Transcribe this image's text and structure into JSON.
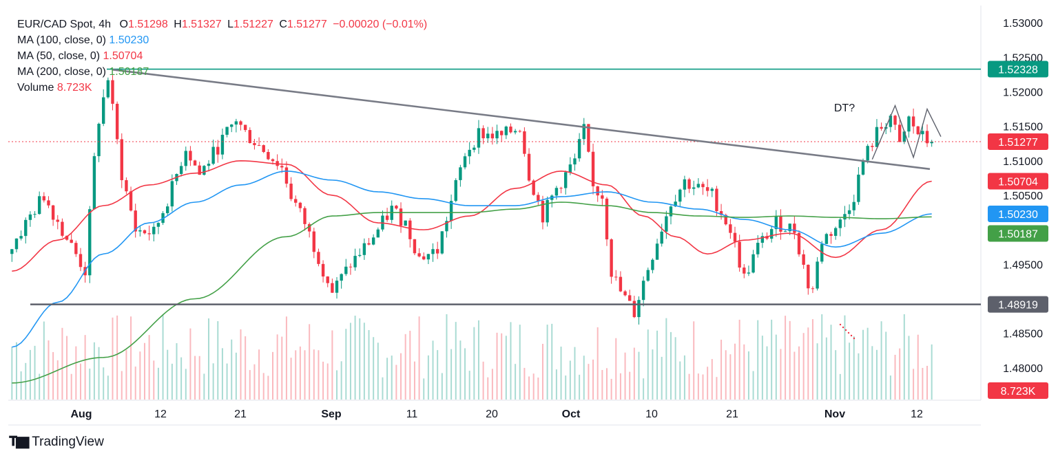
{
  "header": {
    "symbol": "EUR/CAD Spot, 4h",
    "ohlc": {
      "o_label": "O",
      "o_value": "1.51298",
      "h_label": "H",
      "h_value": "1.51327",
      "l_label": "L",
      "l_value": "1.51227",
      "c_label": "C",
      "c_value": "1.51277",
      "change": "−0.00020 (−0.01%)"
    },
    "indicators": [
      {
        "name": "MA (100, close, 0)",
        "value": "1.50230",
        "color": "#2196f3"
      },
      {
        "name": "MA (50, close, 0)",
        "value": "1.50704",
        "color": "#f23645"
      },
      {
        "name": "MA (200, close, 0)",
        "value": "1.50187",
        "color": "#43a047"
      },
      {
        "name": "Volume",
        "value": "8.723K",
        "color": "#f23645"
      }
    ]
  },
  "chart_data": {
    "type": "candlestick",
    "title": "EUR/CAD Spot, 4h",
    "ylim": [
      1.4753,
      1.5325
    ],
    "y_ticks": [
      "1.48000",
      "1.48500",
      "1.49500",
      "1.50500",
      "1.51000",
      "1.51500",
      "1.52000",
      "1.52500",
      "1.53000"
    ],
    "x_ticks": [
      "Aug",
      "12",
      "21",
      "Sep",
      "11",
      "20",
      "Oct",
      "10",
      "21",
      "Nov",
      "12"
    ],
    "x_tick_major": [
      "Aug",
      "Sep",
      "Oct",
      "Nov"
    ],
    "price_path": [
      [
        0,
        1.4965
      ],
      [
        5,
        1.502
      ],
      [
        8,
        1.505
      ],
      [
        12,
        1.5
      ],
      [
        17,
        1.494
      ],
      [
        19,
        1.51
      ],
      [
        20,
        1.516
      ],
      [
        22,
        1.522
      ],
      [
        25,
        1.508
      ],
      [
        28,
        1.5
      ],
      [
        32,
        1.4995
      ],
      [
        36,
        1.506
      ],
      [
        39,
        1.512
      ],
      [
        42,
        1.508
      ],
      [
        46,
        1.512
      ],
      [
        50,
        1.516
      ],
      [
        52,
        1.514
      ],
      [
        57,
        1.511
      ],
      [
        60,
        1.509
      ],
      [
        62,
        1.505
      ],
      [
        65,
        1.501
      ],
      [
        68,
        1.496
      ],
      [
        71,
        1.491
      ],
      [
        75,
        1.495
      ],
      [
        80,
        1.499
      ],
      [
        84,
        1.503
      ],
      [
        87,
        1.501
      ],
      [
        90,
        1.496
      ],
      [
        94,
        1.497
      ],
      [
        97,
        1.504
      ],
      [
        100,
        1.511
      ],
      [
        103,
        1.514
      ],
      [
        108,
        1.5135
      ],
      [
        112,
        1.515
      ],
      [
        114,
        1.508
      ],
      [
        117,
        1.502
      ],
      [
        120,
        1.506
      ],
      [
        124,
        1.51
      ],
      [
        126,
        1.5145
      ],
      [
        128,
        1.506
      ],
      [
        130,
        1.505
      ],
      [
        132,
        1.494
      ],
      [
        134,
        1.491
      ],
      [
        137,
        1.488
      ],
      [
        139,
        1.4925
      ],
      [
        142,
        1.4985
      ],
      [
        145,
        1.504
      ],
      [
        148,
        1.507
      ],
      [
        151,
        1.506
      ],
      [
        154,
        1.505
      ],
      [
        158,
        1.5
      ],
      [
        161,
        1.493
      ],
      [
        164,
        1.4975
      ],
      [
        168,
        1.501
      ],
      [
        172,
        1.5
      ],
      [
        175,
        1.492
      ],
      [
        176,
        1.4915
      ],
      [
        178,
        1.4985
      ],
      [
        182,
        1.501
      ],
      [
        185,
        1.505
      ],
      [
        187,
        1.51
      ],
      [
        190,
        1.514
      ],
      [
        193,
        1.5165
      ],
      [
        195,
        1.512
      ],
      [
        197,
        1.516
      ],
      [
        199,
        1.514
      ],
      [
        201,
        1.5128
      ]
    ],
    "candle_count": 202,
    "series": [
      {
        "name": "MA (50, close, 0)",
        "color": "#f23645",
        "last": 1.50704,
        "points": [
          [
            0,
            1.494
          ],
          [
            10,
            1.4985
          ],
          [
            20,
            1.5035
          ],
          [
            30,
            1.5065
          ],
          [
            40,
            1.5082
          ],
          [
            50,
            1.51
          ],
          [
            60,
            1.5095
          ],
          [
            70,
            1.505
          ],
          [
            80,
            1.501
          ],
          [
            90,
            1.5
          ],
          [
            100,
            1.502
          ],
          [
            110,
            1.506
          ],
          [
            120,
            1.5085
          ],
          [
            130,
            1.5065
          ],
          [
            138,
            1.502
          ],
          [
            145,
            1.499
          ],
          [
            152,
            1.4965
          ],
          [
            160,
            1.4985
          ],
          [
            170,
            1.4995
          ],
          [
            180,
            1.496
          ],
          [
            190,
            1.5
          ],
          [
            201,
            1.50704
          ]
        ]
      },
      {
        "name": "MA (100, close, 0)",
        "color": "#2196f3",
        "last": 1.5023,
        "points": [
          [
            0,
            1.483
          ],
          [
            10,
            1.4895
          ],
          [
            20,
            1.4965
          ],
          [
            30,
            1.501
          ],
          [
            40,
            1.504
          ],
          [
            50,
            1.5065
          ],
          [
            60,
            1.5085
          ],
          [
            70,
            1.5072
          ],
          [
            80,
            1.5055
          ],
          [
            90,
            1.5045
          ],
          [
            100,
            1.5035
          ],
          [
            110,
            1.5035
          ],
          [
            120,
            1.5048
          ],
          [
            130,
            1.5055
          ],
          [
            140,
            1.504
          ],
          [
            150,
            1.503
          ],
          [
            160,
            1.5015
          ],
          [
            170,
            1.5
          ],
          [
            180,
            1.4975
          ],
          [
            190,
            1.4995
          ],
          [
            201,
            1.5023
          ]
        ]
      },
      {
        "name": "MA (200, close, 0)",
        "color": "#43a047",
        "last": 1.50187,
        "points": [
          [
            0,
            1.4778
          ],
          [
            20,
            1.4815
          ],
          [
            40,
            1.49
          ],
          [
            60,
            1.499
          ],
          [
            70,
            1.502
          ],
          [
            80,
            1.5025
          ],
          [
            90,
            1.5025
          ],
          [
            100,
            1.5025
          ],
          [
            110,
            1.503
          ],
          [
            120,
            1.504
          ],
          [
            130,
            1.5035
          ],
          [
            140,
            1.5025
          ],
          [
            150,
            1.502
          ],
          [
            160,
            1.5018
          ],
          [
            170,
            1.502
          ],
          [
            180,
            1.5018
          ],
          [
            190,
            1.5016
          ],
          [
            201,
            1.50187
          ]
        ]
      }
    ],
    "volume": {
      "label": "Volume",
      "last": "8.723K"
    },
    "annotations": {
      "resistance_line": {
        "value": 1.52328,
        "label": "1.52328",
        "color": "#089981"
      },
      "support_line": {
        "value": 1.48919,
        "label": "1.48919",
        "color": "#5d606b"
      },
      "current_price": {
        "value": 1.51277,
        "label": "1.51277",
        "color": "#f23645"
      },
      "ma50_tag": {
        "value": 1.50704,
        "label": "1.50704",
        "color": "#f23645"
      },
      "ma100_tag": {
        "value": 1.5023,
        "label": "1.50230",
        "color": "#2196f3"
      },
      "ma200_tag": {
        "value": 1.50187,
        "label": "1.50187",
        "color": "#43a047"
      },
      "volume_tag": {
        "label": "8.723K",
        "color": "#f23645"
      },
      "trendline": {
        "start": [
          22,
          1.5232
        ],
        "end": [
          210,
          1.5088
        ],
        "color": "#787b86"
      },
      "double_top_text": "DT?",
      "double_top_points": [
        [
          188,
          1.5102
        ],
        [
          193,
          1.518
        ],
        [
          197,
          1.5105
        ],
        [
          200,
          1.5175
        ],
        [
          203,
          1.5135
        ]
      ]
    }
  },
  "footer": {
    "brand": "TradingView"
  }
}
